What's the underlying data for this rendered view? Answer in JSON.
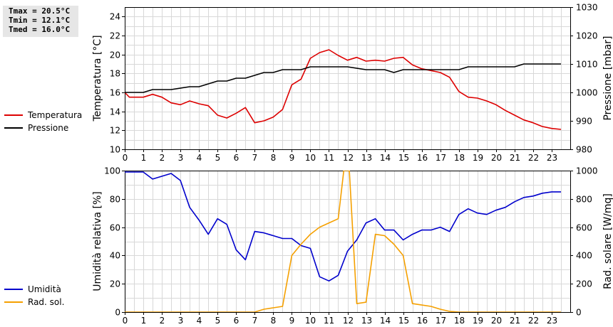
{
  "stats": {
    "tmax": "Tmax = 20.5°C",
    "tmin": "Tmin = 12.1°C",
    "tmed": "Tmed = 16.0°C"
  },
  "legend_top": [
    {
      "label": "Temperatura",
      "color": "#dd0000"
    },
    {
      "label": "Pressione",
      "color": "#000000"
    }
  ],
  "legend_bottom": [
    {
      "label": "Umidità",
      "color": "#0000cc"
    },
    {
      "label": "Rad. sol.",
      "color": "#f5a000"
    }
  ],
  "chart_data": [
    {
      "type": "line",
      "ylabel": "Temperatura [°C]",
      "y2label": "Pressione [mbar]",
      "xlim": [
        0,
        24
      ],
      "ylim": [
        10,
        25
      ],
      "y2lim": [
        980,
        1030
      ],
      "xticks": [
        "0",
        "1",
        "2",
        "3",
        "4",
        "5",
        "6",
        "7",
        "8",
        "9",
        "10",
        "11",
        "12",
        "13",
        "14",
        "15",
        "16",
        "17",
        "18",
        "19",
        "20",
        "21",
        "22",
        "23"
      ],
      "yticks": [
        "10",
        "12",
        "14",
        "16",
        "18",
        "20",
        "22",
        "24"
      ],
      "y2ticks": [
        "980",
        "990",
        "1000",
        "1010",
        "1020",
        "1030"
      ],
      "grid": true,
      "series": [
        {
          "name": "Temperatura",
          "axis": "left",
          "color": "#dd0000",
          "x": [
            0,
            0.25,
            0.5,
            1,
            1.5,
            2,
            2.5,
            3,
            3.5,
            4,
            4.5,
            5,
            5.5,
            6,
            6.5,
            7,
            7.5,
            8,
            8.5,
            9,
            9.5,
            10,
            10.5,
            11,
            11.5,
            12,
            12.5,
            13,
            13.5,
            14,
            14.5,
            15,
            15.5,
            16,
            16.5,
            17,
            17.5,
            18,
            18.5,
            19,
            19.5,
            20,
            20.5,
            21,
            21.5,
            22,
            22.5,
            23,
            23.5
          ],
          "y": [
            16.0,
            15.5,
            15.5,
            15.5,
            15.8,
            15.5,
            14.9,
            14.7,
            15.1,
            14.8,
            14.6,
            13.6,
            13.3,
            13.8,
            14.4,
            12.8,
            13.0,
            13.4,
            14.2,
            16.8,
            17.4,
            19.6,
            20.2,
            20.5,
            19.9,
            19.4,
            19.7,
            19.3,
            19.4,
            19.3,
            19.6,
            19.7,
            18.9,
            18.5,
            18.3,
            18.1,
            17.6,
            16.1,
            15.5,
            15.4,
            15.1,
            14.7,
            14.1,
            13.6,
            13.1,
            12.8,
            12.4,
            12.2,
            12.1
          ]
        },
        {
          "name": "Pressione",
          "axis": "right",
          "color": "#000000",
          "x": [
            0,
            1,
            1.5,
            2.5,
            3.5,
            4,
            5,
            5.5,
            6,
            6.5,
            7,
            7.5,
            8,
            8.5,
            9,
            9.5,
            10,
            11,
            12,
            13,
            14,
            14.5,
            15,
            16,
            17,
            18,
            18.5,
            19,
            20,
            21,
            21.5,
            22,
            23,
            23.5
          ],
          "y": [
            1000,
            1000,
            1001,
            1001,
            1002,
            1002,
            1004,
            1004,
            1005,
            1005,
            1006,
            1007,
            1007,
            1008,
            1008,
            1008,
            1009,
            1009,
            1009,
            1008,
            1008,
            1007,
            1008,
            1008,
            1008,
            1008,
            1009,
            1009,
            1009,
            1009,
            1010,
            1010,
            1010,
            1010
          ]
        }
      ]
    },
    {
      "type": "line",
      "ylabel": "Umidità relativa [%]",
      "y2label": "Rad. solare [W/mq]",
      "xlim": [
        0,
        24
      ],
      "ylim": [
        0,
        100
      ],
      "y2lim": [
        0,
        1000
      ],
      "xticks": [
        "0",
        "1",
        "2",
        "3",
        "4",
        "5",
        "6",
        "7",
        "8",
        "9",
        "10",
        "11",
        "12",
        "13",
        "14",
        "15",
        "16",
        "17",
        "18",
        "19",
        "20",
        "21",
        "22",
        "23"
      ],
      "yticks": [
        "0",
        "20",
        "40",
        "60",
        "80",
        "100"
      ],
      "y2ticks": [
        "0",
        "200",
        "400",
        "600",
        "800",
        "1000"
      ],
      "grid": true,
      "series": [
        {
          "name": "Umidità",
          "axis": "left",
          "color": "#0000cc",
          "x": [
            0,
            1,
            1.5,
            2.5,
            3,
            3.5,
            4,
            4.5,
            5,
            5.5,
            6,
            6.5,
            7,
            7.5,
            8,
            8.5,
            9,
            9.5,
            10,
            10.5,
            11,
            11.5,
            12,
            12.5,
            13,
            13.5,
            14,
            14.5,
            15,
            15.5,
            16,
            16.5,
            17,
            17.5,
            18,
            18.5,
            19,
            19.5,
            20,
            20.5,
            21,
            21.5,
            22,
            22.5,
            23,
            23.5
          ],
          "y": [
            99,
            99,
            94,
            98,
            93,
            74,
            65,
            55,
            66,
            62,
            44,
            37,
            57,
            56,
            54,
            52,
            52,
            47,
            45,
            25,
            22,
            26,
            43,
            51,
            63,
            66,
            58,
            58,
            51,
            55,
            58,
            58,
            60,
            57,
            69,
            73,
            70,
            69,
            72,
            74,
            78,
            81,
            82,
            84,
            85,
            85
          ]
        },
        {
          "name": "Rad. sol.",
          "axis": "right",
          "color": "#f5a000",
          "x": [
            0,
            1,
            2,
            3,
            4,
            5,
            6,
            7,
            7.5,
            8,
            8.5,
            9,
            9.5,
            10,
            10.5,
            11,
            11.5,
            11.8,
            12.1,
            12.5,
            13,
            13.5,
            14,
            14.5,
            15,
            15.5,
            16,
            16.5,
            17,
            17.5,
            18,
            19,
            20,
            21,
            22,
            23,
            23.5
          ],
          "y": [
            0,
            0,
            0,
            0,
            0,
            0,
            0,
            0,
            20,
            30,
            40,
            400,
            480,
            550,
            600,
            630,
            660,
            1000,
            1000,
            60,
            70,
            550,
            540,
            480,
            400,
            60,
            50,
            40,
            20,
            5,
            0,
            0,
            0,
            0,
            0,
            0,
            0
          ]
        }
      ]
    }
  ]
}
